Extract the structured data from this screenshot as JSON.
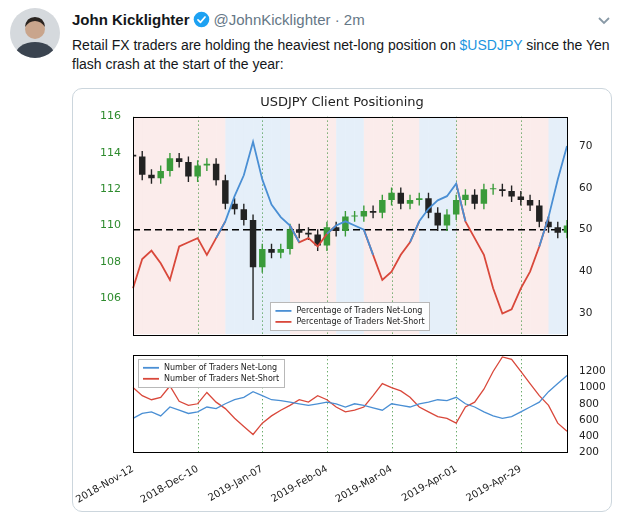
{
  "tweet": {
    "name": "John Kicklighter",
    "byline": "@JohnKicklighter · 2m",
    "text": "Retail FX traders are holding the heaviest net-long position on $USDJPY since the Yen flash crash at the start of the year:",
    "cashtag": "$USDJPY"
  },
  "chart_data": [
    {
      "type": "line",
      "title": "USDJPY Client Positioning",
      "categories": [
        "2018-Nov-12",
        null,
        null,
        null,
        null,
        null,
        null,
        "2018-Dec-10",
        null,
        null,
        null,
        null,
        null,
        null,
        "2019-Jan-07",
        null,
        null,
        null,
        null,
        null,
        null,
        "2019-Feb-04",
        null,
        null,
        null,
        null,
        null,
        null,
        "2019-Mar-04",
        null,
        null,
        null,
        null,
        null,
        null,
        "2019-Apr-01",
        null,
        null,
        null,
        null,
        null,
        null,
        "2019-Apr-29",
        null,
        null,
        null,
        null,
        null
      ],
      "series": [
        {
          "type": "candlestick",
          "open": [
            113.9,
            113.8,
            112.8,
            112.6,
            113.0,
            113.7,
            113.5,
            112.7,
            113.3,
            113.4,
            112.5,
            111.2,
            110.9,
            110.3,
            107.7,
            108.7,
            108.5,
            108.7,
            109.8,
            109.6,
            109.5,
            108.9,
            109.9,
            109.7,
            110.5,
            110.5,
            110.8,
            110.7,
            111.4,
            111.8,
            111.2,
            111.4,
            111.5,
            110.7,
            110.0,
            110.6,
            111.4,
            111.7,
            111.2,
            112.0,
            112.0,
            111.9,
            111.6,
            111.4,
            111.1,
            110.2,
            109.9,
            109.6
          ],
          "high": [
            114.2,
            114.1,
            113.1,
            113.3,
            114.0,
            114.0,
            113.8,
            113.6,
            113.7,
            113.7,
            112.8,
            111.5,
            111.2,
            110.6,
            109.0,
            109.0,
            109.0,
            110.1,
            110.1,
            109.9,
            109.8,
            110.2,
            110.2,
            110.8,
            110.8,
            111.1,
            111.1,
            111.7,
            112.1,
            112.1,
            111.7,
            111.8,
            111.8,
            111.0,
            110.9,
            111.7,
            112.0,
            112.0,
            112.3,
            112.3,
            112.3,
            112.2,
            111.9,
            111.7,
            111.4,
            110.5,
            110.2,
            110.3
          ],
          "low": [
            113.5,
            112.5,
            112.3,
            112.3,
            112.7,
            113.2,
            112.4,
            112.4,
            113.0,
            112.2,
            110.9,
            110.6,
            110.0,
            104.8,
            107.4,
            108.2,
            108.2,
            108.4,
            109.3,
            109.2,
            108.6,
            108.6,
            109.4,
            109.4,
            110.2,
            110.2,
            110.4,
            110.4,
            111.1,
            110.9,
            110.9,
            111.1,
            110.4,
            109.7,
            109.7,
            110.3,
            111.1,
            110.9,
            110.9,
            111.7,
            111.6,
            111.3,
            111.1,
            110.8,
            109.9,
            109.6,
            109.3,
            109.3
          ],
          "close": [
            113.8,
            112.8,
            112.6,
            113.0,
            113.7,
            113.5,
            112.7,
            113.3,
            113.4,
            112.5,
            111.2,
            110.9,
            110.3,
            107.7,
            108.7,
            108.5,
            108.7,
            109.8,
            109.6,
            109.5,
            108.9,
            109.9,
            109.7,
            110.5,
            110.5,
            110.8,
            110.7,
            111.4,
            111.8,
            111.2,
            111.4,
            111.5,
            110.7,
            110.0,
            110.6,
            111.4,
            111.7,
            111.2,
            112.0,
            112.0,
            111.9,
            111.6,
            111.4,
            111.1,
            110.2,
            109.9,
            109.6,
            110.0
          ],
          "colors": [
            "#222222",
            "#222222",
            "#222222",
            "#3a9b3a",
            "#3a9b3a",
            "#222222",
            "#222222",
            "#3a9b3a",
            "#3a9b3a",
            "#222222",
            "#222222",
            "#222222",
            "#222222",
            "#222222",
            "#3a9b3a",
            "#222222",
            "#3a9b3a",
            "#3a9b3a",
            "#222222",
            "#222222",
            "#222222",
            "#3a9b3a",
            "#222222",
            "#3a9b3a",
            "#3a9b3a",
            "#3a9b3a",
            "#222222",
            "#3a9b3a",
            "#3a9b3a",
            "#222222",
            "#3a9b3a",
            "#3a9b3a",
            "#222222",
            "#222222",
            "#3a9b3a",
            "#3a9b3a",
            "#3a9b3a",
            "#222222",
            "#3a9b3a",
            "#3a9b3a",
            "#222222",
            "#222222",
            "#222222",
            "#222222",
            "#222222",
            "#222222",
            "#222222",
            "#3a9b3a"
          ]
        },
        {
          "name": "Percentage of Traders Net-Long",
          "color": "#4a8fd4",
          "axis": "y2",
          "values": [
            null,
            null,
            null,
            null,
            null,
            null,
            null,
            null,
            null,
            48,
            52,
            58,
            63,
            71,
            62,
            56,
            53,
            51,
            47,
            null,
            null,
            49,
            51,
            52,
            51,
            50,
            44,
            null,
            null,
            null,
            47,
            52,
            55,
            57,
            58,
            61,
            52,
            null,
            null,
            null,
            null,
            null,
            null,
            null,
            46,
            53,
            62,
            70
          ]
        },
        {
          "name": "Percentage of Traders Net-Short",
          "color": "#d9483b",
          "axis": "y2",
          "values": [
            36,
            43,
            45,
            42,
            38,
            46,
            47,
            48,
            44,
            48,
            52,
            null,
            null,
            null,
            null,
            null,
            null,
            51,
            47,
            48,
            46,
            49,
            51,
            null,
            null,
            50,
            44,
            38,
            40,
            44,
            47,
            52,
            null,
            null,
            null,
            61,
            52,
            48,
            44,
            36,
            30,
            31,
            36,
            40,
            46,
            53,
            null,
            null
          ]
        }
      ],
      "ylim": [
        104,
        116
      ],
      "yticks": [
        106,
        108,
        110,
        112,
        114,
        116
      ],
      "y2lim": [
        25,
        77
      ],
      "y2ticks": [
        30,
        40,
        50,
        60,
        70
      ],
      "reference_line": {
        "value": 50,
        "axis": "y2",
        "line_style": "dashed",
        "color": "#000000"
      },
      "grid": true,
      "legend": "lower center",
      "tick_labels": "y"
    },
    {
      "type": "line",
      "categories": [
        "2018-Nov-12",
        null,
        null,
        null,
        null,
        null,
        null,
        "2018-Dec-10",
        null,
        null,
        null,
        null,
        null,
        null,
        "2019-Jan-07",
        null,
        null,
        null,
        null,
        null,
        null,
        "2019-Feb-04",
        null,
        null,
        null,
        null,
        null,
        null,
        "2019-Mar-04",
        null,
        null,
        null,
        null,
        null,
        null,
        "2019-Apr-01",
        null,
        null,
        null,
        null,
        null,
        null,
        "2019-Apr-29",
        null,
        null,
        null,
        null,
        null
      ],
      "series": [
        {
          "name": "Number of Traders Net-Long",
          "color": "#4a8fd4",
          "axis": "y2",
          "values": [
            620,
            680,
            700,
            650,
            760,
            720,
            680,
            700,
            760,
            740,
            800,
            850,
            880,
            950,
            900,
            850,
            840,
            820,
            800,
            780,
            800,
            820,
            800,
            760,
            800,
            780,
            750,
            720,
            800,
            780,
            760,
            800,
            820,
            850,
            840,
            880,
            800,
            760,
            700,
            650,
            620,
            640,
            700,
            760,
            820,
            950,
            1050,
            1150
          ]
        },
        {
          "name": "Number of Traders Net-Short",
          "color": "#d9483b",
          "axis": "y2",
          "values": [
            1000,
            900,
            850,
            880,
            1020,
            830,
            780,
            800,
            940,
            820,
            740,
            620,
            520,
            420,
            560,
            650,
            720,
            780,
            850,
            820,
            900,
            850,
            760,
            700,
            720,
            760,
            900,
            1050,
            1000,
            960,
            880,
            760,
            700,
            640,
            620,
            560,
            760,
            820,
            980,
            1200,
            1380,
            1350,
            1200,
            1050,
            900,
            780,
            560,
            460
          ]
        }
      ],
      "y2lim": [
        200,
        1400
      ],
      "y2ticks": [
        200,
        400,
        600,
        800,
        1000,
        1200
      ],
      "grid": true,
      "legend": "upper left"
    }
  ]
}
